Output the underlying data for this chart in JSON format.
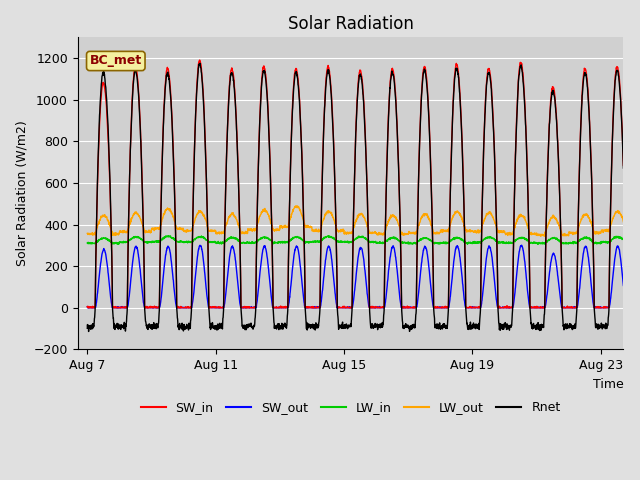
{
  "title": "Solar Radiation",
  "ylabel": "Solar Radiation (W/m2)",
  "xlabel": "Time",
  "ylim": [
    -200,
    1300
  ],
  "yticks": [
    -200,
    0,
    200,
    400,
    600,
    800,
    1000,
    1200
  ],
  "xtick_labels": [
    "Aug 7",
    "Aug 11",
    "Aug 15",
    "Aug 19",
    "Aug 23"
  ],
  "n_days": 17,
  "points_per_day": 144,
  "colors": {
    "SW_in": "#ff0000",
    "SW_out": "#0000ff",
    "LW_in": "#00cc00",
    "LW_out": "#ffa500",
    "Rnet": "#000000"
  },
  "station_label": "BC_met",
  "fig_facecolor": "#e0e0e0",
  "ax_facecolor": "#d0d0d0",
  "title_fontsize": 12,
  "label_fontsize": 9,
  "tick_fontsize": 9,
  "legend_fontsize": 9,
  "linewidth": 1.0
}
